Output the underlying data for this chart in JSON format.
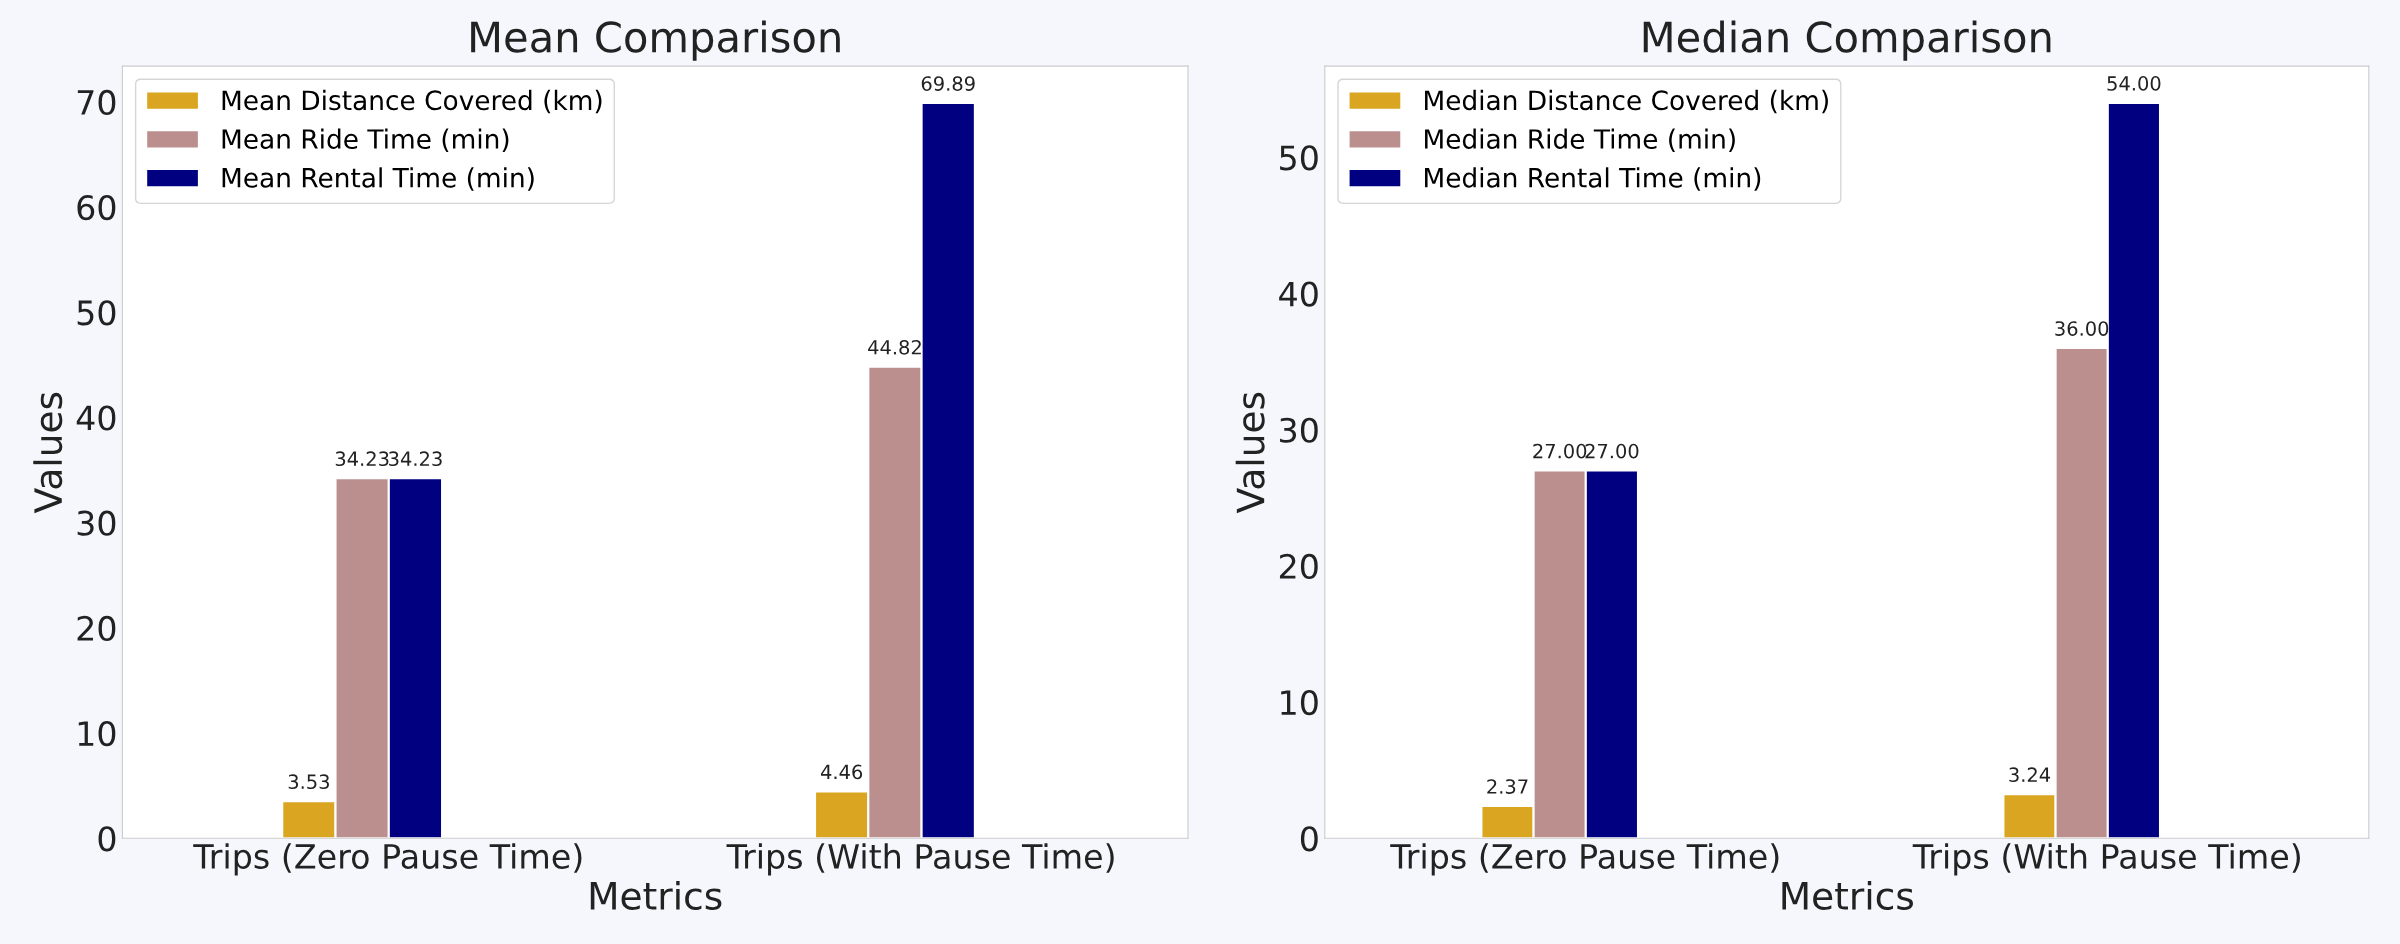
{
  "chart_data": [
    {
      "type": "bar",
      "title": "Mean Comparison",
      "xlabel": "Metrics",
      "ylabel": "Values",
      "categories": [
        "Trips (Zero Pause Time)",
        "Trips (With Pause Time)"
      ],
      "series": [
        {
          "name": "Mean Distance Covered (km)",
          "color": "#daa520",
          "values": [
            3.53,
            4.46
          ],
          "value_labels": [
            "3.53",
            "4.46"
          ]
        },
        {
          "name": "Mean Ride Time (min)",
          "color": "#bc8f8f",
          "values": [
            34.23,
            44.82
          ],
          "value_labels": [
            "34.23",
            "44.82"
          ]
        },
        {
          "name": "Mean Rental Time (min)",
          "color": "#000080",
          "values": [
            34.23,
            69.89
          ],
          "value_labels": [
            "34.23",
            "69.89"
          ]
        }
      ],
      "ylim": [
        0,
        73.4
      ],
      "yticks": [
        0,
        10,
        20,
        30,
        40,
        50,
        60,
        70
      ],
      "legend": "top left",
      "grid": false
    },
    {
      "type": "bar",
      "title": "Median Comparison",
      "xlabel": "Metrics",
      "ylabel": "Values",
      "categories": [
        "Trips (Zero Pause Time)",
        "Trips (With Pause Time)"
      ],
      "series": [
        {
          "name": "Median Distance Covered (km)",
          "color": "#daa520",
          "values": [
            2.37,
            3.24
          ],
          "value_labels": [
            "2.37",
            "3.24"
          ]
        },
        {
          "name": "Median Ride Time (min)",
          "color": "#bc8f8f",
          "values": [
            27.0,
            36.0
          ],
          "value_labels": [
            "27.00",
            "36.00"
          ]
        },
        {
          "name": "Median Rental Time (min)",
          "color": "#000080",
          "values": [
            27.0,
            54.0
          ],
          "value_labels": [
            "27.00",
            "54.00"
          ]
        }
      ],
      "ylim": [
        0,
        56.7
      ],
      "yticks": [
        0,
        10,
        20,
        30,
        40,
        50
      ],
      "legend": "top left",
      "grid": false
    }
  ]
}
